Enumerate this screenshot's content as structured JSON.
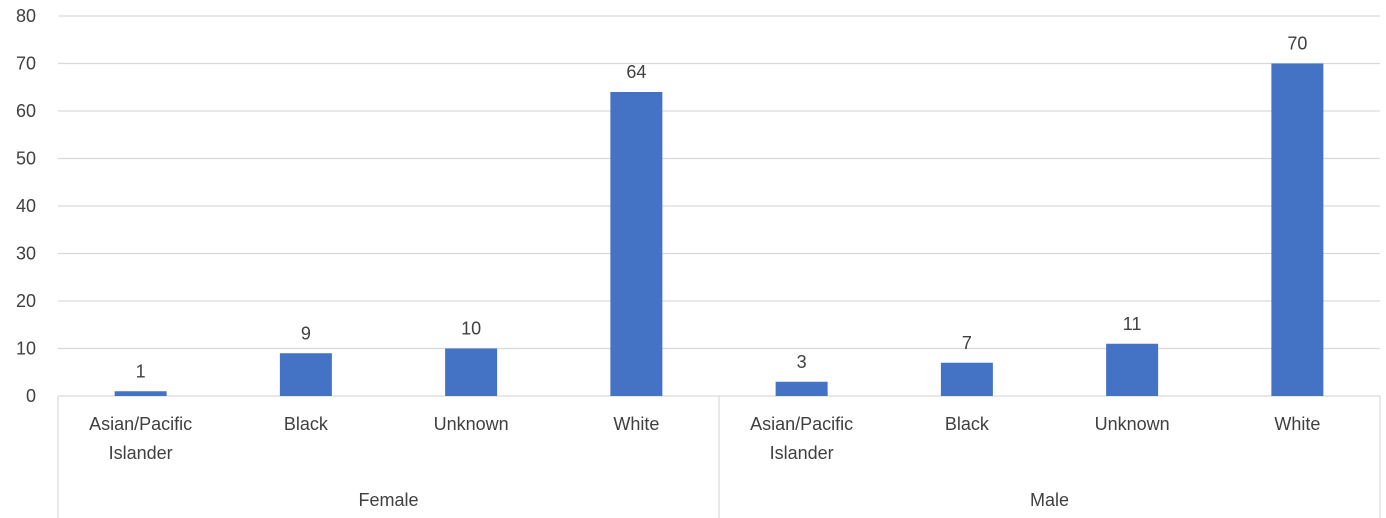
{
  "chart_data": {
    "type": "bar",
    "title": "",
    "xlabel": "",
    "ylabel": "",
    "ylim": [
      0,
      80
    ],
    "yticks": [
      0,
      10,
      20,
      30,
      40,
      50,
      60,
      70,
      80
    ],
    "grid": true,
    "legend": "none",
    "bar_color": "#4472c4",
    "groups": [
      {
        "name": "Female",
        "categories": [
          [
            "Asian/Pacific",
            "Islander"
          ],
          [
            "Black"
          ],
          [
            "Unknown"
          ],
          [
            "White"
          ]
        ],
        "values": [
          1,
          9,
          10,
          64
        ]
      },
      {
        "name": "Male",
        "categories": [
          [
            "Asian/Pacific",
            "Islander"
          ],
          [
            "Black"
          ],
          [
            "Unknown"
          ],
          [
            "White"
          ]
        ],
        "values": [
          3,
          7,
          11,
          70
        ]
      }
    ]
  }
}
